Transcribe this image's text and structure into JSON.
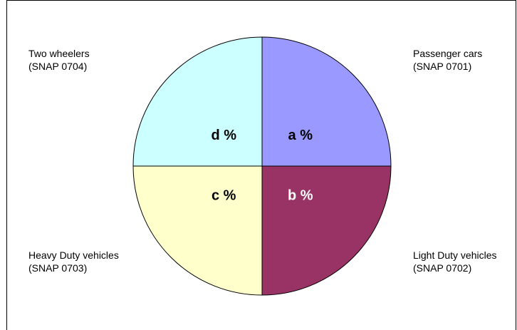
{
  "chart_data": {
    "type": "pie",
    "categories": [
      "Passenger cars\n(SNAP 0701)",
      "Light Duty vehicles\n(SNAP 0702)",
      "Heavy Duty vehicles\n(SNAP 0703)",
      "Two wheelers\n(SNAP 0704)"
    ],
    "values": [
      25,
      25,
      25,
      25
    ],
    "value_labels": [
      "a %",
      "b %",
      "c %",
      "d %"
    ],
    "colors": [
      "#9999ff",
      "#993366",
      "#ffffcc",
      "#ccffff"
    ],
    "label_colors": [
      "#000000",
      "#ffffff",
      "#000000",
      "#000000"
    ]
  }
}
